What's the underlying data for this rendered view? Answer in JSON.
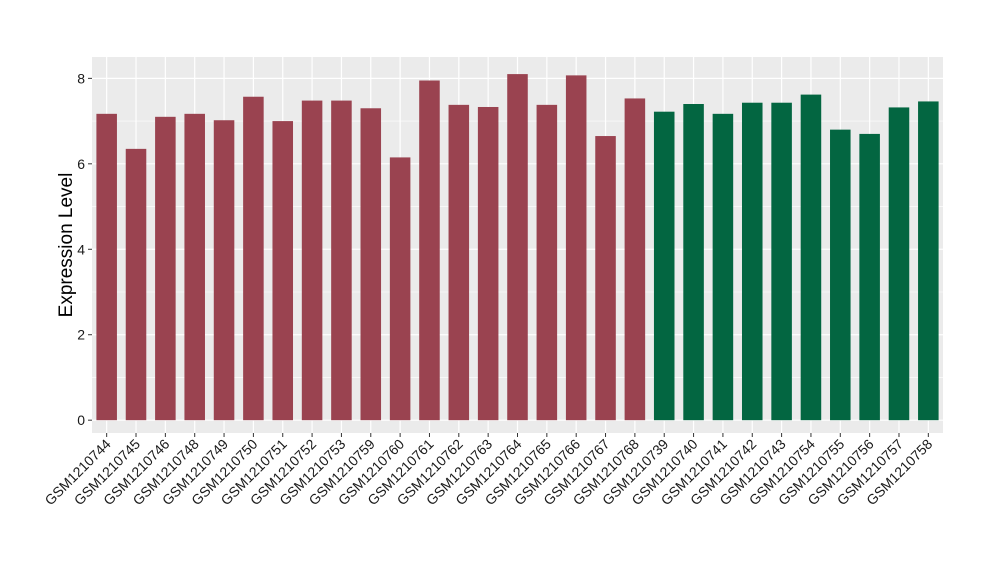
{
  "chart_data": {
    "type": "bar",
    "title": "",
    "xlabel": "",
    "ylabel": "Expression Level",
    "ylim": [
      -0.3,
      8.5
    ],
    "yticks": [
      0,
      2,
      4,
      6,
      8
    ],
    "ytick_labels": [
      "0",
      "2",
      "4",
      "6",
      "8"
    ],
    "grid": true,
    "legend": "none",
    "categories": [
      "GSM1210744",
      "GSM1210745",
      "GSM1210746",
      "GSM1210748",
      "GSM1210749",
      "GSM1210750",
      "GSM1210751",
      "GSM1210752",
      "GSM1210753",
      "GSM1210759",
      "GSM1210760",
      "GSM1210761",
      "GSM1210762",
      "GSM1210763",
      "GSM1210764",
      "GSM1210765",
      "GSM1210766",
      "GSM1210767",
      "GSM1210768",
      "GSM1210739",
      "GSM1210740",
      "GSM1210741",
      "GSM1210742",
      "GSM1210743",
      "GSM1210754",
      "GSM1210755",
      "GSM1210756",
      "GSM1210757",
      "GSM1210758"
    ],
    "values": [
      7.17,
      6.35,
      7.1,
      7.17,
      7.02,
      7.57,
      7.0,
      7.48,
      7.48,
      7.3,
      6.15,
      7.95,
      7.38,
      7.33,
      8.1,
      7.38,
      8.07,
      6.65,
      7.53,
      7.22,
      7.4,
      7.17,
      7.43,
      7.43,
      7.62,
      6.8,
      6.7,
      7.32,
      7.46
    ],
    "colors": [
      "#9a4350",
      "#9a4350",
      "#9a4350",
      "#9a4350",
      "#9a4350",
      "#9a4350",
      "#9a4350",
      "#9a4350",
      "#9a4350",
      "#9a4350",
      "#9a4350",
      "#9a4350",
      "#9a4350",
      "#9a4350",
      "#9a4350",
      "#9a4350",
      "#9a4350",
      "#9a4350",
      "#9a4350",
      "#036641",
      "#036641",
      "#036641",
      "#036641",
      "#036641",
      "#036641",
      "#036641",
      "#036641",
      "#036641",
      "#036641"
    ],
    "panel_background": "#ebebeb",
    "grid_color": "#ffffff"
  }
}
